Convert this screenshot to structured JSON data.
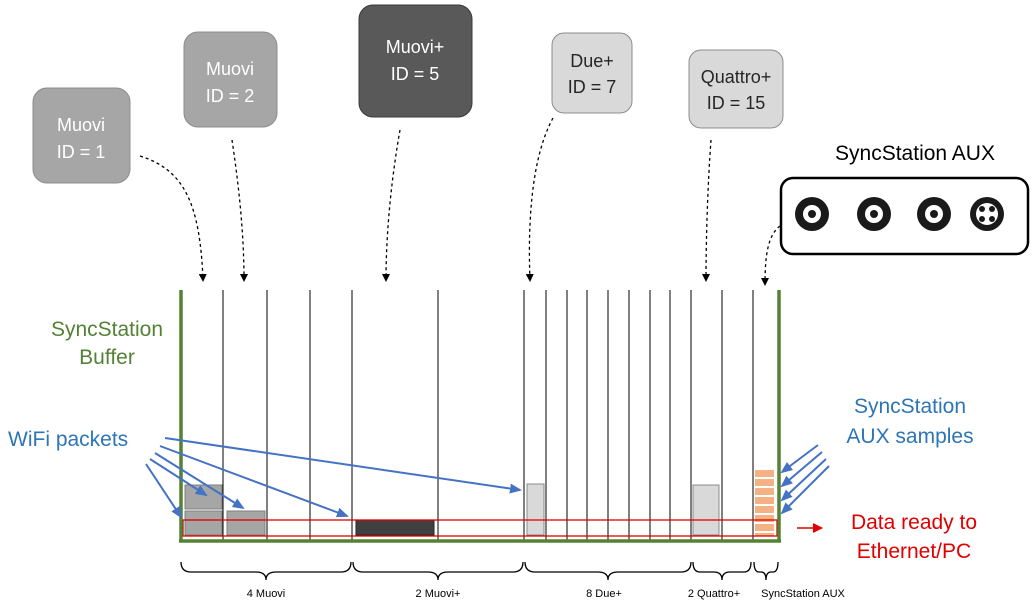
{
  "devices": [
    {
      "name": "Muovi",
      "id_text": "ID = 1",
      "fill": "#a6a6a6",
      "text_color": "#ffffff"
    },
    {
      "name": "Muovi",
      "id_text": "ID = 2",
      "fill": "#a6a6a6",
      "text_color": "#ffffff"
    },
    {
      "name": "Muovi+",
      "id_text": "ID = 5",
      "fill": "#595959",
      "text_color": "#ffffff"
    },
    {
      "name": "Due+",
      "id_text": "ID = 7",
      "fill": "#d9d9d9",
      "text_color": "#262626"
    },
    {
      "name": "Quattro+",
      "id_text": "ID = 15",
      "fill": "#d9d9d9",
      "text_color": "#262626"
    }
  ],
  "aux": {
    "title": "SyncStation AUX",
    "connectors": [
      "bnc-connector",
      "bnc-connector",
      "bnc-connector",
      "four-pin-connector"
    ]
  },
  "labels": {
    "buffer_line1": "SyncStation",
    "buffer_line2": "Buffer",
    "wifi": "WiFi packets",
    "aux_samples_line1": "SyncStation",
    "aux_samples_line2": "AUX samples",
    "ready_line1": "Data ready to",
    "ready_line2": "Ethernet/PC"
  },
  "groups": [
    {
      "label": "4 Muovi"
    },
    {
      "label": "2 Muovi+"
    },
    {
      "label": "8 Due+"
    },
    {
      "label": "2 Quattro+"
    },
    {
      "label": "SyncStation AUX"
    }
  ],
  "colors": {
    "buffer_green": "#548235",
    "arrow_blue": "#4472c4",
    "ready_red": "#e00000",
    "aux_sample_orange": "#f4b183",
    "label_blue": "#2e75b6"
  }
}
